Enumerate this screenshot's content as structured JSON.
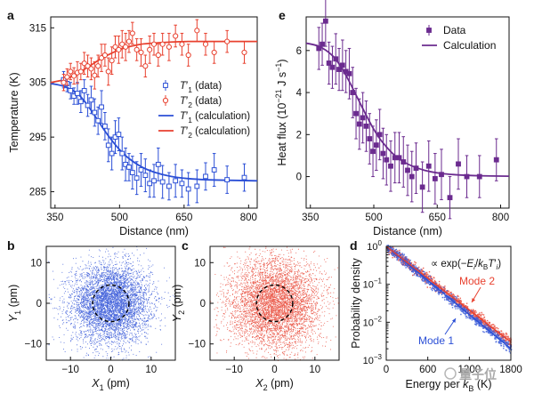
{
  "colors": {
    "blue": "#2b4fd6",
    "red": "#e8412f",
    "purple": "#6b2b8f",
    "axis": "#111111"
  },
  "watermark": "量子位",
  "chart_data": [
    {
      "panel": "a",
      "type": "scatter",
      "xlabel": "Distance (nm)",
      "ylabel": "Temperature (K)",
      "xlim": [
        340,
        820
      ],
      "ylim": [
        282,
        317
      ],
      "xticks": [
        350,
        500,
        650,
        800
      ],
      "yticks": [
        285,
        295,
        305,
        315
      ],
      "legend": {
        "placement": "center-right",
        "entries": [
          {
            "sym": "T",
            "sub": "1",
            "note": "(data)",
            "color": "blue",
            "kind": "marker"
          },
          {
            "sym": "T",
            "sub": "2",
            "note": "(data)",
            "color": "red",
            "kind": "marker"
          },
          {
            "sym": "T",
            "sub": "1",
            "note": "(calculation)",
            "color": "blue",
            "kind": "line"
          },
          {
            "sym": "T",
            "sub": "2",
            "note": "(calculation)",
            "color": "red",
            "kind": "line"
          }
        ]
      },
      "series": [
        {
          "name": "T1 data",
          "color": "blue",
          "marker": "square-open",
          "x": [
            370,
            378,
            386,
            394,
            402,
            410,
            418,
            426,
            434,
            442,
            450,
            458,
            466,
            474,
            482,
            490,
            498,
            506,
            514,
            522,
            530,
            540,
            550,
            560,
            570,
            580,
            590,
            600,
            615,
            630,
            645,
            660,
            680,
            700,
            720,
            750,
            790
          ],
          "y": [
            305.5,
            304.8,
            303.5,
            302.5,
            303,
            301.5,
            303.5,
            300.8,
            301.8,
            299.5,
            298,
            300.5,
            297,
            293.5,
            292,
            295,
            295.5,
            292,
            290,
            289.5,
            288.5,
            287.5,
            289,
            288,
            286.5,
            287,
            290,
            286.8,
            286,
            287,
            286.5,
            285.5,
            286,
            287.8,
            289,
            287.2,
            287.6
          ],
          "err": [
            1.5,
            1.5,
            1.5,
            1.5,
            2,
            2,
            2,
            2,
            2.5,
            2.5,
            2.5,
            3,
            2.5,
            3,
            3,
            3,
            3,
            3,
            3,
            2.5,
            3,
            3,
            3,
            3,
            2.5,
            3,
            3,
            3,
            2.5,
            3,
            2.5,
            3,
            3,
            2.5,
            3,
            2.5,
            2.5
          ]
        },
        {
          "name": "T2 data",
          "color": "red",
          "marker": "circle-open",
          "x": [
            370,
            378,
            386,
            394,
            402,
            410,
            418,
            426,
            434,
            442,
            450,
            458,
            466,
            474,
            482,
            490,
            498,
            506,
            514,
            522,
            530,
            540,
            550,
            560,
            570,
            580,
            590,
            600,
            615,
            630,
            645,
            660,
            680,
            700,
            720,
            750,
            790
          ],
          "y": [
            305,
            306,
            307,
            306.2,
            306.8,
            307,
            308.5,
            308,
            307.5,
            306.3,
            308,
            309.5,
            310,
            307,
            309,
            311.5,
            311,
            312,
            311.5,
            312.5,
            314,
            311,
            310.5,
            308,
            311,
            312,
            310,
            312,
            311.5,
            313.5,
            312,
            310,
            314.5,
            312,
            310.5,
            312.5,
            310.5
          ],
          "err": [
            1.5,
            1.5,
            1.5,
            1.5,
            2,
            1.5,
            2,
            2,
            2,
            2.5,
            2,
            2.5,
            2,
            2.5,
            2.5,
            2,
            2.5,
            2.5,
            2.5,
            2,
            2,
            2,
            2.5,
            2,
            2.5,
            2,
            2,
            2,
            2.5,
            2,
            2,
            2,
            2,
            2,
            2,
            2,
            2
          ]
        },
        {
          "name": "T1 calculation",
          "color": "blue",
          "kind": "line",
          "x": [
            340,
            370,
            400,
            420,
            440,
            460,
            480,
            500,
            520,
            550,
            580,
            620,
            660,
            700,
            750,
            820
          ],
          "y": [
            304.8,
            304.3,
            303.1,
            301.4,
            299.2,
            296.8,
            294.6,
            292.7,
            291.2,
            289.6,
            288.6,
            287.8,
            287.4,
            287.2,
            287.1,
            287.0
          ]
        },
        {
          "name": "T2 calculation",
          "color": "red",
          "kind": "line",
          "x": [
            340,
            370,
            400,
            420,
            440,
            460,
            480,
            500,
            520,
            550,
            580,
            620,
            660,
            700,
            750,
            820
          ],
          "y": [
            305.0,
            305.5,
            306.5,
            307.5,
            308.5,
            309.5,
            310.3,
            311.0,
            311.5,
            312.0,
            312.2,
            312.4,
            312.5,
            312.5,
            312.5,
            312.5
          ]
        }
      ]
    },
    {
      "panel": "e",
      "type": "scatter",
      "xlabel": "Distance (nm)",
      "ylabel": "Heat flux (10−21 J s−1)",
      "ylabel_parts": {
        "pre": "Heat flux (10",
        "exp1": "−21",
        "mid": " J s",
        "exp2": "−1",
        "post": ")"
      },
      "xlim": [
        340,
        820
      ],
      "ylim": [
        -1.5,
        7.6
      ],
      "xticks": [
        350,
        500,
        650,
        800
      ],
      "yticks": [
        0,
        2,
        4,
        6
      ],
      "legend": {
        "placement": "top-right",
        "entries": [
          {
            "label": "Data",
            "color": "purple",
            "kind": "marker"
          },
          {
            "label": "Calculation",
            "color": "purple",
            "kind": "line"
          }
        ]
      },
      "series": [
        {
          "name": "Data",
          "color": "purple",
          "marker": "square-filled",
          "x": [
            370,
            378,
            386,
            394,
            402,
            410,
            418,
            426,
            434,
            442,
            450,
            458,
            466,
            474,
            482,
            490,
            498,
            506,
            514,
            522,
            530,
            540,
            550,
            560,
            570,
            580,
            590,
            600,
            615,
            630,
            645,
            660,
            680,
            700,
            720,
            750,
            790
          ],
          "y": [
            6.1,
            6.3,
            7.4,
            5.4,
            5.2,
            5.6,
            5.1,
            5.3,
            5.0,
            4.9,
            4.0,
            3.0,
            2.5,
            2.8,
            2.4,
            1.8,
            1.2,
            1.5,
            2.0,
            1.1,
            0.8,
            0.5,
            0.9,
            0.9,
            0.7,
            0.3,
            0.0,
            0.4,
            -0.5,
            0.5,
            -0.1,
            0.1,
            -1.0,
            0.6,
            0.0,
            0.0,
            0.8
          ],
          "err": [
            1.0,
            1.0,
            1.2,
            1.0,
            1.0,
            1.2,
            1.0,
            1.2,
            1.0,
            1.2,
            1.2,
            1.2,
            1.2,
            1.2,
            1.2,
            1.2,
            1.2,
            1.2,
            1.2,
            1.2,
            1.2,
            1.2,
            1.2,
            1.2,
            1.2,
            1.2,
            1.2,
            1.2,
            1.2,
            1.2,
            1.2,
            1.2,
            1.0,
            1.2,
            1.0,
            1.0,
            1.0
          ]
        },
        {
          "name": "Calculation",
          "color": "purple",
          "kind": "line",
          "x": [
            340,
            370,
            400,
            420,
            440,
            460,
            480,
            500,
            520,
            550,
            580,
            620,
            660,
            700,
            750,
            820
          ],
          "y": [
            6.35,
            6.2,
            5.8,
            5.3,
            4.6,
            3.8,
            3.0,
            2.25,
            1.65,
            1.0,
            0.6,
            0.3,
            0.15,
            0.08,
            0.04,
            0.02
          ]
        }
      ]
    },
    {
      "panel": "b",
      "type": "scatter",
      "xlabel": "X1 (pm)",
      "xsym": "X",
      "xsub": "1",
      "xunit": "(pm)",
      "ylabel": "Y1 (pm)",
      "ysym": "Y",
      "ysub": "1",
      "yunit": "(pm)",
      "xlim": [
        -16,
        16
      ],
      "ylim": [
        -14,
        14
      ],
      "xticks": [
        -10,
        0,
        10
      ],
      "yticks": [
        -10,
        0,
        10
      ],
      "color": "blue",
      "point_count": 5200,
      "std": 4.8,
      "circle_radius": 4.5
    },
    {
      "panel": "c",
      "type": "scatter",
      "xlabel": "X2 (pm)",
      "xsym": "X",
      "xsub": "2",
      "xunit": "(pm)",
      "ylabel": "Y2 (pm)",
      "ysym": "Y",
      "ysub": "2",
      "yunit": "(pm)",
      "xlim": [
        -16,
        16
      ],
      "ylim": [
        -14,
        14
      ],
      "xticks": [
        -10,
        0,
        10
      ],
      "yticks": [
        -10,
        0,
        10
      ],
      "color": "red",
      "point_count": 5200,
      "std": 5.6,
      "circle_radius": 4.5
    },
    {
      "panel": "d",
      "type": "line",
      "xlabel": "Energy per kB (K)",
      "xlabel_parts": {
        "pre": "Energy per ",
        "sym": "k",
        "sub": "B",
        "post": " (K)"
      },
      "ylabel": "Probability density",
      "xlim": [
        0,
        1800
      ],
      "ylim_log10": [
        -3,
        0
      ],
      "xticks": [
        0,
        600,
        1200,
        1800
      ],
      "yticks_log10": [
        -3,
        -2,
        -1,
        0
      ],
      "ytick_labels": [
        "10−3",
        "10−2",
        "10−1",
        "100"
      ],
      "annotation": "∝ exp(−Ei/kBTi′)",
      "series": [
        {
          "name": "Mode 1",
          "label": "Mode 1",
          "color": "blue",
          "T": 290
        },
        {
          "name": "Mode 2",
          "label": "Mode 2",
          "color": "red",
          "T": 310
        }
      ]
    }
  ]
}
